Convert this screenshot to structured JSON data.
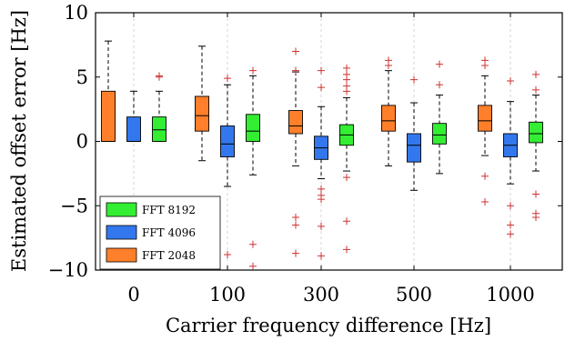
{
  "chart_data": {
    "type": "box",
    "xlabel": "Carrier frequency difference [Hz]",
    "ylabel": "Estimated offset error [Hz]",
    "ylim": [
      -10,
      10
    ],
    "yticks": [
      -10,
      -5,
      0,
      5,
      10
    ],
    "ytick_labels": [
      "−10",
      "−5",
      "0",
      "5",
      "10"
    ],
    "categories": [
      "0",
      "100",
      "300",
      "500",
      "1000"
    ],
    "grid": "vertical-dashed",
    "legend": {
      "placement": "bottom-left",
      "entries": [
        {
          "name": "FFT 8192",
          "color": "#33ee33"
        },
        {
          "name": "FFT 4096",
          "color": "#3377ee"
        },
        {
          "name": "FFT 2048",
          "color": "#ff7f2a"
        }
      ]
    },
    "outlier_color": "#cc3333",
    "series": [
      {
        "name": "FFT 2048",
        "color": "#ff7f2a",
        "boxes": [
          {
            "category": "0",
            "whisker_low": 0,
            "q1": 0,
            "median": 0,
            "q3": 3.9,
            "whisker_high": 7.8,
            "outliers": []
          },
          {
            "category": "100",
            "whisker_low": -1.5,
            "q1": 0.8,
            "median": 2.0,
            "q3": 3.5,
            "whisker_high": 7.4,
            "outliers": []
          },
          {
            "category": "300",
            "whisker_low": -1.9,
            "q1": 0.6,
            "median": 1.2,
            "q3": 2.4,
            "whisker_high": 5.4,
            "outliers": [
              5.5,
              7.0,
              -5.9,
              -6.5,
              -8.7
            ]
          },
          {
            "category": "500",
            "whisker_low": -1.9,
            "q1": 0.8,
            "median": 1.6,
            "q3": 2.8,
            "whisker_high": 5.5,
            "outliers": [
              5.9,
              6.3
            ]
          },
          {
            "category": "1000",
            "whisker_low": -1.1,
            "q1": 0.8,
            "median": 1.6,
            "q3": 2.8,
            "whisker_high": 5.1,
            "outliers": [
              5.9,
              6.3,
              -2.7,
              -4.7
            ]
          }
        ]
      },
      {
        "name": "FFT 4096",
        "color": "#3377ee",
        "boxes": [
          {
            "category": "0",
            "whisker_low": 0,
            "q1": 0,
            "median": 0,
            "q3": 1.9,
            "whisker_high": 3.9,
            "outliers": []
          },
          {
            "category": "100",
            "whisker_low": -3.5,
            "q1": -1.2,
            "median": -0.2,
            "q3": 1.2,
            "whisker_high": 4.4,
            "outliers": [
              4.9,
              -8.8
            ]
          },
          {
            "category": "300",
            "whisker_low": -2.9,
            "q1": -1.4,
            "median": -0.5,
            "q3": 0.4,
            "whisker_high": 2.7,
            "outliers": [
              5.5,
              4.2,
              -3.7,
              -4.2,
              -4.5,
              -6.6,
              -8.9
            ]
          },
          {
            "category": "500",
            "whisker_low": -3.8,
            "q1": -1.6,
            "median": -0.3,
            "q3": 0.6,
            "whisker_high": 3.0,
            "outliers": [
              4.8
            ]
          },
          {
            "category": "1000",
            "whisker_low": -3.3,
            "q1": -1.2,
            "median": -0.3,
            "q3": 0.6,
            "whisker_high": 3.1,
            "outliers": [
              4.7,
              -5.0,
              -6.5,
              -7.2
            ]
          }
        ]
      },
      {
        "name": "FFT 8192",
        "color": "#33ee33",
        "boxes": [
          {
            "category": "0",
            "whisker_low": 0,
            "q1": 0,
            "median": 0.9,
            "q3": 1.9,
            "whisker_high": 3.9,
            "outliers": [
              5.1,
              5.0
            ]
          },
          {
            "category": "100",
            "whisker_low": -2.6,
            "q1": 0,
            "median": 0.8,
            "q3": 2.1,
            "whisker_high": 5.1,
            "outliers": [
              5.5,
              -8.0,
              -9.7
            ]
          },
          {
            "category": "300",
            "whisker_low": -2.3,
            "q1": -0.3,
            "median": 0.5,
            "q3": 1.3,
            "whisker_high": 3.4,
            "outliers": [
              5.7,
              5.2,
              4.8,
              4.3,
              3.9,
              -2.8,
              -6.2,
              -8.4
            ]
          },
          {
            "category": "500",
            "whisker_low": -2.5,
            "q1": -0.2,
            "median": 0.5,
            "q3": 1.4,
            "whisker_high": 3.6,
            "outliers": [
              6.0,
              4.4
            ]
          },
          {
            "category": "1000",
            "whisker_low": -2.3,
            "q1": -0.1,
            "median": 0.6,
            "q3": 1.5,
            "whisker_high": 3.6,
            "outliers": [
              5.2,
              4.0,
              -4.1,
              -5.6,
              -5.9
            ]
          }
        ]
      }
    ]
  }
}
